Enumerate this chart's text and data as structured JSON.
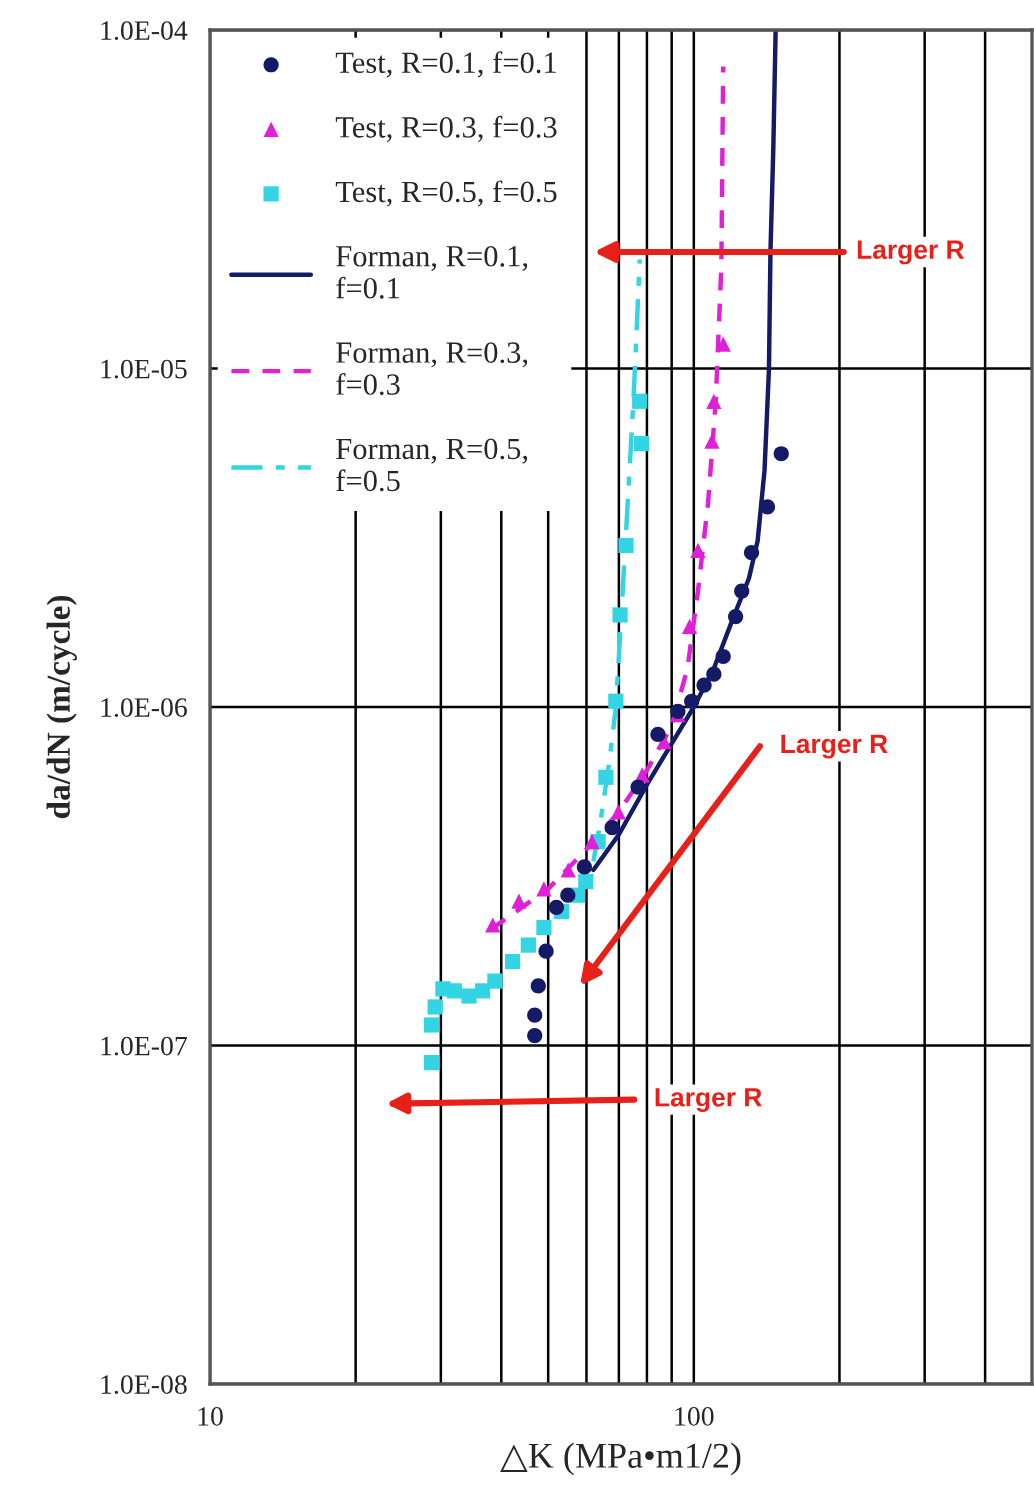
{
  "chart_data": {
    "type": "scatter",
    "xlabel": "△K (MPa•m1/2)",
    "ylabel": "da/dN (m/cycle)",
    "log": "xy",
    "grid": true,
    "legend": "top left",
    "xlim": [
      10,
      500
    ],
    "ylim": [
      1e-08,
      0.0001
    ],
    "xticks": [
      10,
      {
        "value": 20,
        "label": null
      },
      {
        "value": 30,
        "label": null
      },
      {
        "value": 40,
        "label": null
      },
      {
        "value": 50,
        "label": null
      },
      {
        "value": 60,
        "label": null
      },
      {
        "value": 70,
        "label": null
      },
      {
        "value": 80,
        "label": null
      },
      {
        "value": 90,
        "label": null
      },
      100,
      {
        "value": 200,
        "label": null
      },
      {
        "value": 300,
        "label": null
      },
      {
        "value": 400,
        "label": null
      }
    ],
    "yticks": [
      {
        "value": 1e-08,
        "label": "1.0E-08"
      },
      {
        "value": 1e-07,
        "label": "1.0E-07"
      },
      {
        "value": 1e-06,
        "label": "1.0E-06"
      },
      {
        "value": 1e-05,
        "label": "1.0E-05"
      },
      {
        "value": 0.0001,
        "label": "1.0E-04"
      }
    ],
    "series": [
      {
        "name": "Test, R=0.1, f=0.1",
        "marker": "circle",
        "color": "#141a66",
        "x": [
          46.9,
          46.9,
          47.7,
          49.5,
          52,
          54.9,
          59.4,
          67.8,
          76.7,
          84.3,
          92.7,
          99,
          105,
          110,
          115,
          122,
          125.6,
          131.6,
          142,
          151.6
        ],
        "values": [
          1.07e-07,
          1.23e-07,
          1.5e-07,
          1.9e-07,
          2.56e-07,
          2.78e-07,
          3.37e-07,
          4.4e-07,
          5.8e-07,
          8.3e-07,
          9.7e-07,
          1.04e-06,
          1.16e-06,
          1.25e-06,
          1.41e-06,
          1.85e-06,
          2.2e-06,
          2.86e-06,
          3.9e-06,
          5.6e-06
        ]
      },
      {
        "name": "Test, R=0.3, f=0.3",
        "marker": "triangle",
        "color": "#e020d8",
        "x": [
          38.4,
          43.5,
          49,
          55,
          61.6,
          69.8,
          78.2,
          86.8,
          92.7,
          98,
          102,
          109,
          110,
          115
        ],
        "values": [
          2.27e-07,
          2.67e-07,
          2.9e-07,
          3.3e-07,
          4e-07,
          4.9e-07,
          6.3e-07,
          7.9e-07,
          9.5e-07,
          1.73e-06,
          2.9e-06,
          6.1e-06,
          8e-06,
          1.18e-05
        ]
      },
      {
        "name": "Test, R=0.5, f=0.5",
        "marker": "square",
        "color": "#33d4e4",
        "x": [
          28.7,
          28.7,
          29.2,
          30.3,
          32.0,
          34.3,
          36.6,
          38.8,
          42.2,
          45.5,
          49,
          53.3,
          57.5,
          59.8,
          63.4,
          65.8,
          69,
          70.4,
          72.4,
          78,
          77.3
        ],
        "values": [
          8.9e-08,
          1.15e-07,
          1.3e-07,
          1.47e-07,
          1.45e-07,
          1.4e-07,
          1.45e-07,
          1.55e-07,
          1.77e-07,
          1.98e-07,
          2.23e-07,
          2.49e-07,
          2.78e-07,
          3.05e-07,
          4e-07,
          6.2e-07,
          1.04e-06,
          1.87e-06,
          3e-06,
          6e-06,
          8e-06
        ]
      },
      {
        "name": "Forman, R=0.1,\nf=0.1",
        "type": "line",
        "marker": "none",
        "line_style": "solid",
        "color": "#141a66",
        "x": [
          62,
          70,
          80,
          90,
          100,
          110,
          120,
          130,
          135.5,
          140,
          143,
          144,
          146,
          147.6
        ],
        "values": [
          3.3e-07,
          4.2e-07,
          5.9e-07,
          7.8e-07,
          1e-06,
          1.3e-06,
          1.8e-06,
          2.4e-06,
          3.1e-06,
          5e-06,
          1e-05,
          2.2e-05,
          4.5e-05,
          0.0001
        ]
      },
      {
        "name": "Forman, R=0.3,\nf=0.3",
        "type": "line",
        "marker": "none",
        "line_style": "dashed",
        "color": "#e020d8",
        "x": [
          38,
          50,
          60,
          70,
          80,
          90,
          97,
          102,
          107,
          111,
          114,
          115
        ],
        "values": [
          2.2e-07,
          2.9e-07,
          3.8e-07,
          4.9e-07,
          6.5e-07,
          8.8e-07,
          1.3e-06,
          2.2e-06,
          4e-06,
          8e-06,
          2e-05,
          7.8e-05
        ]
      },
      {
        "name": "Forman, R=0.5,\nf=0.5",
        "type": "line",
        "marker": "none",
        "line_style": "dashdot",
        "color": "#33d4e4",
        "x": [
          62,
          64,
          67,
          69,
          71,
          73,
          75,
          76,
          77.3
        ],
        "values": [
          3.5e-07,
          4.5e-07,
          7e-07,
          1e-06,
          2e-06,
          4e-06,
          8e-06,
          1.2e-05,
          2.1e-05
        ]
      }
    ],
    "annotations": [
      "Larger R",
      "Larger R",
      "Larger R"
    ]
  }
}
